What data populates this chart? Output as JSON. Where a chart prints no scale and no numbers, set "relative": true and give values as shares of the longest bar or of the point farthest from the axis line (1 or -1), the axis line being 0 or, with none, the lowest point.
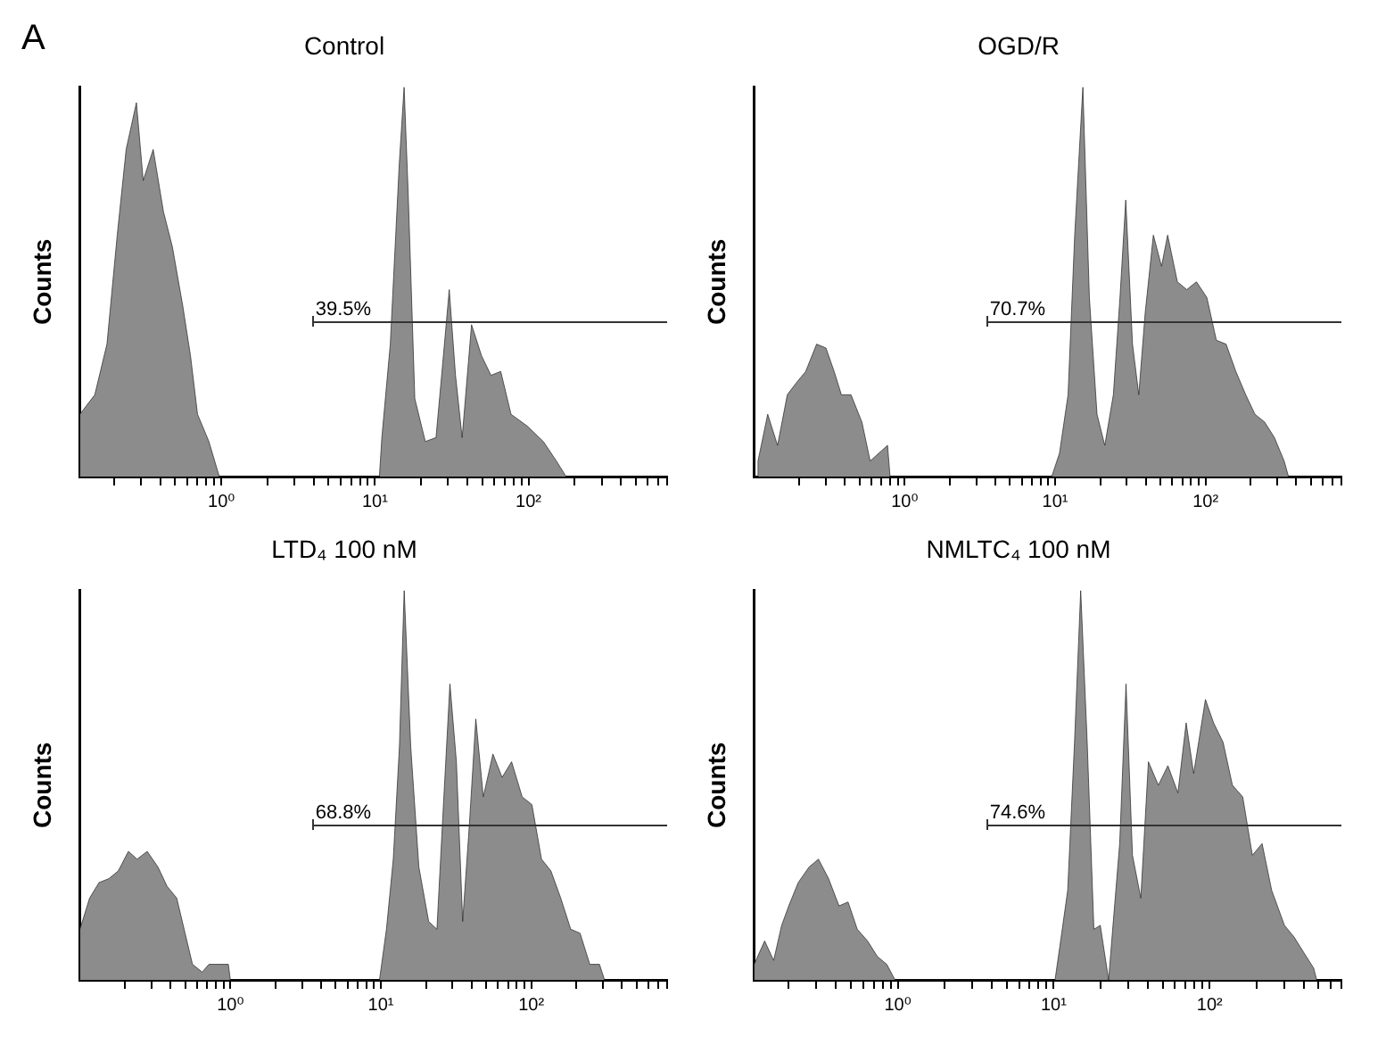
{
  "chart_data": [
    {
      "type": "area",
      "title": "Control",
      "ylabel": "Counts",
      "log": "x",
      "relative": true,
      "xlim": [
        0.12,
        800
      ],
      "tick_labels": "x",
      "xticks": [
        {
          "value": 0.2,
          "label": null
        },
        {
          "value": 0.3,
          "label": null
        },
        {
          "value": 0.4,
          "label": null
        },
        {
          "value": 0.5,
          "label": null
        },
        {
          "value": 0.6,
          "label": null
        },
        {
          "value": 0.7,
          "label": null
        },
        {
          "value": 0.8,
          "label": null
        },
        {
          "value": 0.9,
          "label": null
        },
        {
          "value": 1,
          "label": "10⁰"
        },
        {
          "value": 2,
          "label": null
        },
        {
          "value": 3,
          "label": null
        },
        {
          "value": 4,
          "label": null
        },
        {
          "value": 5,
          "label": null
        },
        {
          "value": 6,
          "label": null
        },
        {
          "value": 7,
          "label": null
        },
        {
          "value": 8,
          "label": null
        },
        {
          "value": 9,
          "label": null
        },
        {
          "value": 10,
          "label": "10¹"
        },
        {
          "value": 20,
          "label": null
        },
        {
          "value": 30,
          "label": null
        },
        {
          "value": 40,
          "label": null
        },
        {
          "value": 50,
          "label": null
        },
        {
          "value": 60,
          "label": null
        },
        {
          "value": 70,
          "label": null
        },
        {
          "value": 80,
          "label": null
        },
        {
          "value": 90,
          "label": null
        },
        {
          "value": 100,
          "label": "10²"
        },
        {
          "value": 200,
          "label": null
        },
        {
          "value": 300,
          "label": null
        },
        {
          "value": 400,
          "label": null
        },
        {
          "value": 500,
          "label": null
        },
        {
          "value": 600,
          "label": null
        },
        {
          "value": 700,
          "label": null
        },
        {
          "value": 800,
          "label": null
        }
      ],
      "x": [
        0.12,
        0.12,
        0.15,
        0.18,
        0.21,
        0.24,
        0.28,
        0.31,
        0.36,
        0.42,
        0.48,
        0.56,
        0.63,
        0.7,
        0.83,
        0.97,
        10.7,
        11.1,
        12.6,
        14.4,
        15.5,
        16.5,
        18.2,
        21.3,
        25,
        27.5,
        30.5,
        33.5,
        37,
        42.6,
        49.5,
        57,
        66,
        77,
        98,
        125,
        152,
        176
      ],
      "values": [
        0,
        0.16,
        0.21,
        0.34,
        0.62,
        0.84,
        0.96,
        0.76,
        0.84,
        0.68,
        0.59,
        0.44,
        0.31,
        0.16,
        0.09,
        0,
        0,
        0.1,
        0.34,
        0.8,
        1,
        0.72,
        0.2,
        0.09,
        0.1,
        0.28,
        0.48,
        0.26,
        0.1,
        0.39,
        0.31,
        0.26,
        0.27,
        0.16,
        0.13,
        0.09,
        0.04,
        0
      ],
      "color": "#8c8c8c",
      "annotations": [
        "A",
        "39.5%"
      ]
    },
    {
      "type": "area",
      "title": "OGD/R",
      "ylabel": "Counts",
      "log": "x",
      "relative": true,
      "xlim": [
        0.1,
        800
      ],
      "tick_labels": "x",
      "xticks": [
        {
          "value": 0.2,
          "label": null
        },
        {
          "value": 0.3,
          "label": null
        },
        {
          "value": 0.4,
          "label": null
        },
        {
          "value": 0.5,
          "label": null
        },
        {
          "value": 0.6,
          "label": null
        },
        {
          "value": 0.7,
          "label": null
        },
        {
          "value": 0.8,
          "label": null
        },
        {
          "value": 0.9,
          "label": null
        },
        {
          "value": 1,
          "label": "10⁰"
        },
        {
          "value": 2,
          "label": null
        },
        {
          "value": 3,
          "label": null
        },
        {
          "value": 4,
          "label": null
        },
        {
          "value": 5,
          "label": null
        },
        {
          "value": 6,
          "label": null
        },
        {
          "value": 7,
          "label": null
        },
        {
          "value": 8,
          "label": null
        },
        {
          "value": 9,
          "label": null
        },
        {
          "value": 10,
          "label": "10¹"
        },
        {
          "value": 20,
          "label": null
        },
        {
          "value": 30,
          "label": null
        },
        {
          "value": 40,
          "label": null
        },
        {
          "value": 50,
          "label": null
        },
        {
          "value": 60,
          "label": null
        },
        {
          "value": 70,
          "label": null
        },
        {
          "value": 80,
          "label": null
        },
        {
          "value": 90,
          "label": null
        },
        {
          "value": 100,
          "label": "10²"
        },
        {
          "value": 200,
          "label": null
        },
        {
          "value": 300,
          "label": null
        },
        {
          "value": 400,
          "label": null
        },
        {
          "value": 500,
          "label": null
        },
        {
          "value": 600,
          "label": null
        },
        {
          "value": 700,
          "label": null
        },
        {
          "value": 800,
          "label": null
        }
      ],
      "x": [
        0.106,
        0.106,
        0.123,
        0.143,
        0.166,
        0.19,
        0.22,
        0.26,
        0.3,
        0.34,
        0.38,
        0.44,
        0.52,
        0.59,
        0.77,
        0.8,
        9.5,
        10.7,
        12.2,
        13.5,
        15.3,
        16.9,
        19,
        21.4,
        24.4,
        27,
        29.5,
        32.7,
        36,
        39.7,
        45,
        51,
        56,
        65,
        75,
        87,
        102,
        118,
        137,
        159,
        185,
        213,
        247,
        287,
        333,
        356
      ],
      "values": [
        0,
        0.04,
        0.16,
        0.08,
        0.21,
        0.24,
        0.27,
        0.34,
        0.33,
        0.27,
        0.21,
        0.21,
        0.14,
        0.04,
        0.08,
        0,
        0,
        0.06,
        0.21,
        0.62,
        1,
        0.46,
        0.16,
        0.08,
        0.21,
        0.46,
        0.71,
        0.34,
        0.21,
        0.42,
        0.62,
        0.54,
        0.62,
        0.5,
        0.48,
        0.5,
        0.46,
        0.35,
        0.34,
        0.27,
        0.21,
        0.16,
        0.14,
        0.1,
        0.04,
        0
      ],
      "color": "#8c8c8c",
      "annotations": [
        "70.7%"
      ]
    },
    {
      "type": "area",
      "title": "LTD₄ 100 nM",
      "ylabel": "Counts",
      "log": "x",
      "relative": true,
      "xlim": [
        0.1,
        800
      ],
      "tick_labels": "x",
      "xticks": [
        {
          "value": 0.2,
          "label": null
        },
        {
          "value": 0.3,
          "label": null
        },
        {
          "value": 0.4,
          "label": null
        },
        {
          "value": 0.5,
          "label": null
        },
        {
          "value": 0.6,
          "label": null
        },
        {
          "value": 0.7,
          "label": null
        },
        {
          "value": 0.8,
          "label": null
        },
        {
          "value": 0.9,
          "label": null
        },
        {
          "value": 1,
          "label": "10⁰"
        },
        {
          "value": 2,
          "label": null
        },
        {
          "value": 3,
          "label": null
        },
        {
          "value": 4,
          "label": null
        },
        {
          "value": 5,
          "label": null
        },
        {
          "value": 6,
          "label": null
        },
        {
          "value": 7,
          "label": null
        },
        {
          "value": 8,
          "label": null
        },
        {
          "value": 9,
          "label": null
        },
        {
          "value": 10,
          "label": "10¹"
        },
        {
          "value": 20,
          "label": null
        },
        {
          "value": 30,
          "label": null
        },
        {
          "value": 40,
          "label": null
        },
        {
          "value": 50,
          "label": null
        },
        {
          "value": 60,
          "label": null
        },
        {
          "value": 70,
          "label": null
        },
        {
          "value": 80,
          "label": null
        },
        {
          "value": 90,
          "label": null
        },
        {
          "value": 100,
          "label": "10²"
        },
        {
          "value": 200,
          "label": null
        },
        {
          "value": 300,
          "label": null
        },
        {
          "value": 400,
          "label": null
        },
        {
          "value": 500,
          "label": null
        },
        {
          "value": 600,
          "label": null
        },
        {
          "value": 700,
          "label": null
        },
        {
          "value": 800,
          "label": null
        }
      ],
      "x": [
        0.1,
        0.1,
        0.116,
        0.134,
        0.156,
        0.18,
        0.21,
        0.24,
        0.28,
        0.33,
        0.38,
        0.44,
        0.5,
        0.56,
        0.65,
        0.72,
        0.97,
        1,
        9.8,
        10.9,
        12.1,
        13.3,
        14.3,
        15.8,
        17.9,
        20.8,
        23.6,
        26,
        28.8,
        31.8,
        35,
        38.8,
        42.8,
        48,
        55.6,
        64,
        74,
        87,
        101,
        117,
        135,
        157,
        183,
        211,
        245,
        284,
        307
      ],
      "values": [
        0,
        0.13,
        0.21,
        0.25,
        0.26,
        0.28,
        0.33,
        0.31,
        0.33,
        0.29,
        0.24,
        0.21,
        0.12,
        0.04,
        0.02,
        0.04,
        0.04,
        0,
        0,
        0.13,
        0.31,
        0.6,
        1,
        0.6,
        0.29,
        0.15,
        0.13,
        0.44,
        0.76,
        0.56,
        0.15,
        0.4,
        0.67,
        0.47,
        0.58,
        0.52,
        0.56,
        0.47,
        0.45,
        0.31,
        0.28,
        0.21,
        0.13,
        0.12,
        0.04,
        0.04,
        0
      ],
      "color": "#8c8c8c",
      "annotations": [
        "68.8%"
      ]
    },
    {
      "type": "area",
      "title": "NMLTC₄ 100 nM",
      "ylabel": "Counts",
      "log": "x",
      "relative": true,
      "xlim": [
        0.12,
        700
      ],
      "tick_labels": "x",
      "xticks": [
        {
          "value": 0.2,
          "label": null
        },
        {
          "value": 0.3,
          "label": null
        },
        {
          "value": 0.4,
          "label": null
        },
        {
          "value": 0.5,
          "label": null
        },
        {
          "value": 0.6,
          "label": null
        },
        {
          "value": 0.7,
          "label": null
        },
        {
          "value": 0.8,
          "label": null
        },
        {
          "value": 0.9,
          "label": null
        },
        {
          "value": 1,
          "label": "10⁰"
        },
        {
          "value": 2,
          "label": null
        },
        {
          "value": 3,
          "label": null
        },
        {
          "value": 4,
          "label": null
        },
        {
          "value": 5,
          "label": null
        },
        {
          "value": 6,
          "label": null
        },
        {
          "value": 7,
          "label": null
        },
        {
          "value": 8,
          "label": null
        },
        {
          "value": 9,
          "label": null
        },
        {
          "value": 10,
          "label": "10¹"
        },
        {
          "value": 20,
          "label": null
        },
        {
          "value": 30,
          "label": null
        },
        {
          "value": 40,
          "label": null
        },
        {
          "value": 50,
          "label": null
        },
        {
          "value": 60,
          "label": null
        },
        {
          "value": 70,
          "label": null
        },
        {
          "value": 80,
          "label": null
        },
        {
          "value": 90,
          "label": null
        },
        {
          "value": 100,
          "label": "10²"
        },
        {
          "value": 200,
          "label": null
        },
        {
          "value": 300,
          "label": null
        },
        {
          "value": 400,
          "label": null
        },
        {
          "value": 500,
          "label": null
        },
        {
          "value": 600,
          "label": null
        },
        {
          "value": 700,
          "label": null
        }
      ],
      "x": [
        0.12,
        0.12,
        0.14,
        0.16,
        0.18,
        0.2,
        0.23,
        0.27,
        0.31,
        0.36,
        0.42,
        0.48,
        0.55,
        0.64,
        0.74,
        0.85,
        0.96,
        10.2,
        10.9,
        12.3,
        13.6,
        14.9,
        16.4,
        18.1,
        19.9,
        22.5,
        24,
        26.5,
        29.1,
        32,
        36.2,
        40.5,
        46.9,
        54,
        62.6,
        70.7,
        79,
        94,
        106,
        122,
        140,
        163,
        188,
        217,
        250,
        302,
        348,
        402,
        465,
        486
      ],
      "values": [
        0,
        0.04,
        0.1,
        0.05,
        0.14,
        0.19,
        0.25,
        0.29,
        0.31,
        0.26,
        0.19,
        0.2,
        0.13,
        0.1,
        0.06,
        0.04,
        0,
        0,
        0.08,
        0.23,
        0.61,
        1,
        0.61,
        0.13,
        0.14,
        0,
        0.14,
        0.35,
        0.76,
        0.32,
        0.21,
        0.56,
        0.5,
        0.55,
        0.48,
        0.66,
        0.53,
        0.72,
        0.66,
        0.61,
        0.5,
        0.47,
        0.32,
        0.35,
        0.23,
        0.14,
        0.11,
        0.07,
        0.03,
        0
      ],
      "color": "#8c8c8c",
      "annotations": [
        "74.6%"
      ]
    }
  ]
}
